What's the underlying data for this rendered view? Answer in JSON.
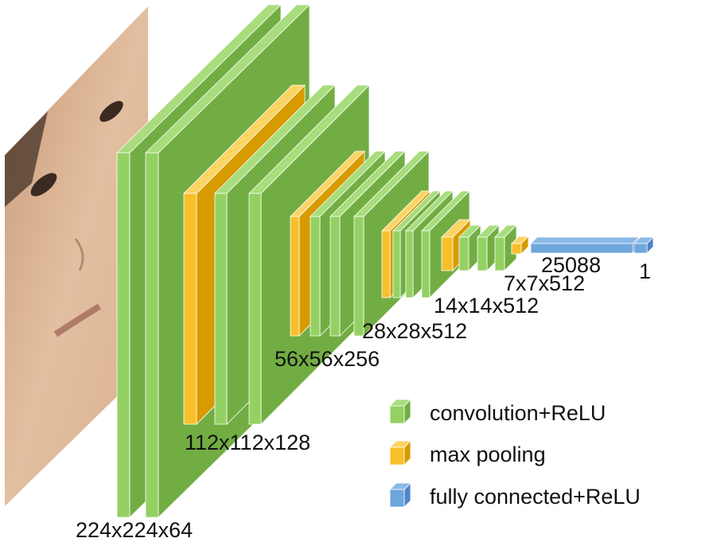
{
  "layers": [
    {
      "label": "224x224x64"
    },
    {
      "label": "112x112x128"
    },
    {
      "label": "56x56x256"
    },
    {
      "label": "28x28x512"
    },
    {
      "label": "14x14x512"
    },
    {
      "label": "7x7x512"
    },
    {
      "label": "25088"
    },
    {
      "label": "1"
    }
  ],
  "legend": [
    {
      "label": "convolution+ReLU"
    },
    {
      "label": "max pooling"
    },
    {
      "label": "fully connected+ReLU"
    }
  ]
}
